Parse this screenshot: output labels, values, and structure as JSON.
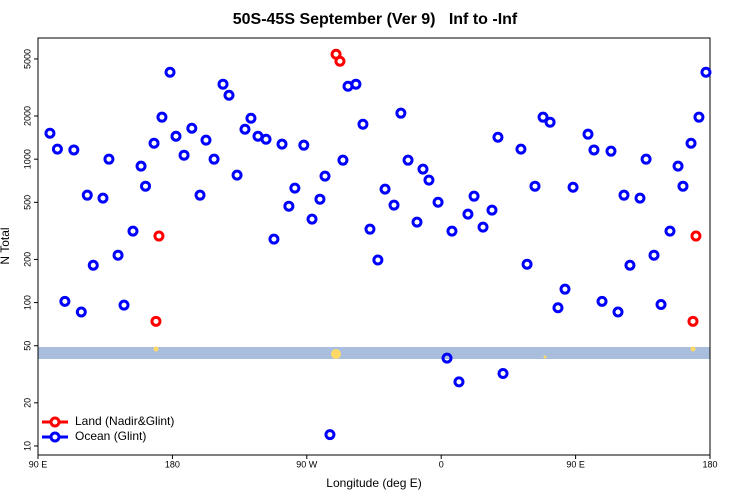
{
  "chart_data": {
    "type": "scatter",
    "title": "50S-45S September (Ver 9)   Inf to -Inf",
    "x_label": "Longitude (deg E)",
    "y_label": "N Total",
    "xlim": [
      90,
      540
    ],
    "xticks": [
      {
        "value": 90,
        "label": "90 E"
      },
      180,
      {
        "value": 270,
        "label": "90 W"
      },
      {
        "value": 360,
        "label": "0"
      },
      {
        "value": 450,
        "label": "90 E"
      },
      {
        "value": 540,
        "label": "180"
      }
    ],
    "ylim": [
      8.65,
      7000
    ],
    "log_y": true,
    "yticks": [
      10,
      20,
      50,
      100,
      200,
      500,
      1000,
      2000,
      5000
    ],
    "legend": "bottom-left",
    "series": [
      {
        "name": "Land (Nadir&Glint)",
        "color": "#ff0000",
        "x": [
          169,
          171,
          289.6,
          292.2,
          528.6,
          530.6
        ],
        "values": [
          74,
          291,
          5395,
          4820,
          74,
          291
        ]
      },
      {
        "name": "Ocean (Glint)",
        "color": "#0000ff",
        "x": [
          98,
          103,
          108,
          114,
          119,
          123,
          127,
          133.5,
          137.5,
          143.6,
          147.6,
          153.6,
          159,
          162,
          167.7,
          173,
          178.4,
          182.4,
          187.8,
          193,
          198.5,
          202.5,
          207.9,
          213.9,
          217.9,
          223.3,
          228.6,
          232.6,
          237.3,
          242.7,
          248,
          253.4,
          258,
          262,
          268,
          273.5,
          278.8,
          282.2,
          285.5,
          294.2,
          297.6,
          302.9,
          307.6,
          312.3,
          317.6,
          322.4,
          328.4,
          333,
          337.8,
          343.8,
          347.8,
          351.8,
          357.9,
          363.9,
          367.2,
          371.9,
          377.9,
          382,
          388,
          394,
          398,
          401.4,
          413.4,
          417.5,
          422.8,
          428.2,
          432.9,
          438.2,
          442.9,
          448.3,
          458.3,
          462.3,
          467.7,
          473.7,
          478.4,
          482.4,
          486.4,
          493.1,
          497.2,
          502.5,
          507.2,
          513.2,
          518.6,
          521.9,
          527.3,
          532.6,
          537.3
        ],
        "values": [
          1517,
          1175,
          102,
          1160,
          86,
          561,
          182,
          535,
          1000,
          214,
          96,
          315,
          894,
          648,
          1292,
          1963,
          4040,
          1446,
          1066,
          1644,
          561,
          1357,
          1000,
          3334,
          2793,
          774,
          1618,
          1931,
          1446,
          1378,
          277,
          1273,
          470,
          628,
          1252,
          382,
          526,
          762,
          12,
          984,
          3226,
          3334,
          1753,
          325,
          198,
          618,
          478,
          2093,
          984,
          364,
          852,
          714,
          501,
          41,
          315,
          28,
          414,
          552,
          336,
          441,
          1423,
          32,
          1175,
          185,
          648,
          1963,
          1811,
          92,
          124,
          637,
          1494,
          1160,
          102,
          1137,
          86,
          561,
          182,
          535,
          1000,
          214,
          97,
          315,
          894,
          648,
          1292,
          1963,
          4040
        ]
      }
    ]
  }
}
